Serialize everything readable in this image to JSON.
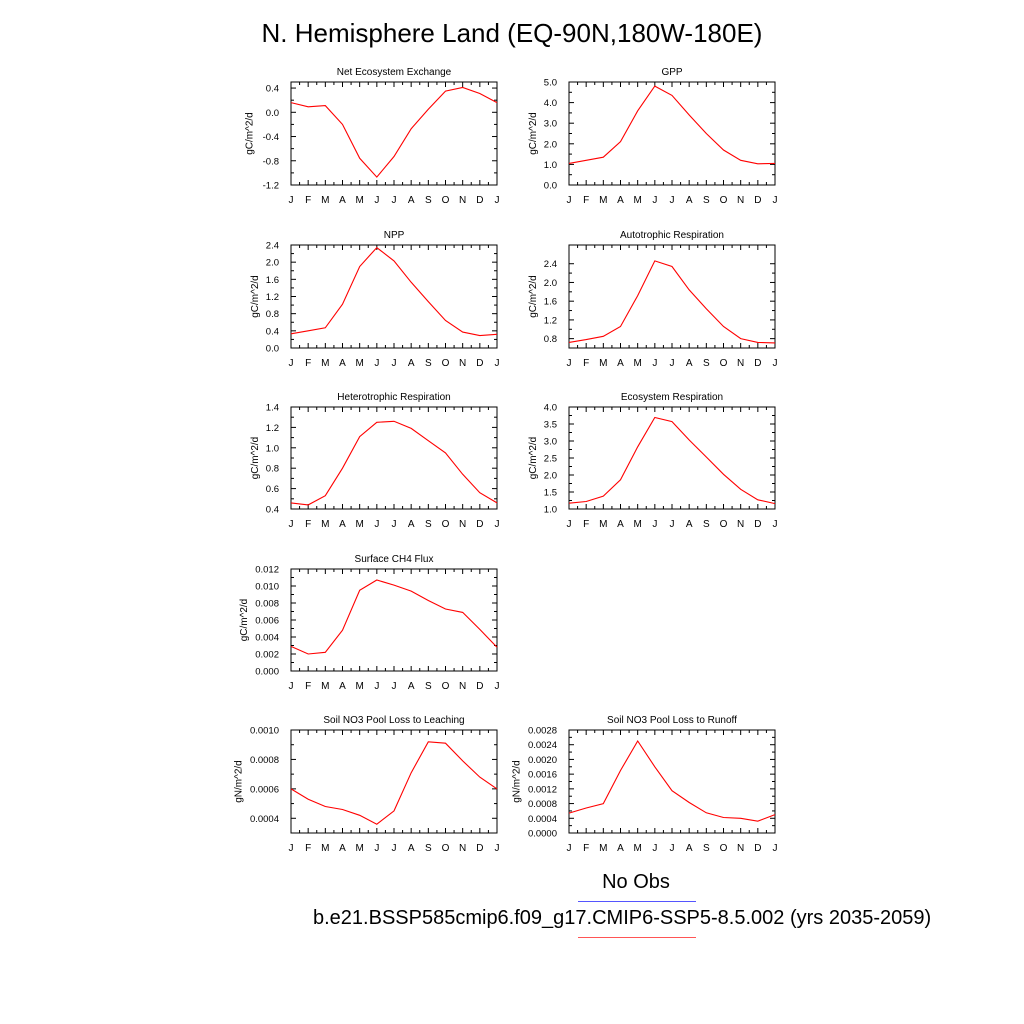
{
  "title": "N. Hemisphere Land (EQ-90N,180W-180E)",
  "months": [
    "J",
    "F",
    "M",
    "A",
    "M",
    "J",
    "J",
    "A",
    "S",
    "O",
    "N",
    "D",
    "J"
  ],
  "legend": {
    "obs_label": "No Obs",
    "obs_color": "#0000ff",
    "model_label": "b.e21.BSSP585cmip6.f09_g17.CMIP6-SSP5-8.5.002 (yrs 2035-2059)",
    "model_color": "#ff0000"
  },
  "chart_data": [
    {
      "type": "line",
      "title": "Net Ecosystem Exchange",
      "ylabel": "gC/m^2/d",
      "ylim": [
        -1.2,
        0.5
      ],
      "yticks": [
        "-1.2",
        "-0.8",
        "-0.4",
        "0.0",
        "0.4"
      ],
      "ytick_values": [
        -1.2,
        -0.8,
        -0.4,
        0.0,
        0.4
      ],
      "x": [
        "J",
        "F",
        "M",
        "A",
        "M",
        "J",
        "J",
        "A",
        "S",
        "O",
        "N",
        "D",
        "J"
      ],
      "series": [
        {
          "color": "#ff0000",
          "values": [
            0.16,
            0.09,
            0.11,
            -0.2,
            -0.76,
            -1.07,
            -0.73,
            -0.27,
            0.05,
            0.35,
            0.41,
            0.31,
            0.16
          ]
        }
      ]
    },
    {
      "type": "line",
      "title": "GPP",
      "ylabel": "gC/m^2/d",
      "ylim": [
        0,
        5
      ],
      "yticks": [
        "0.0",
        "1.0",
        "2.0",
        "3.0",
        "4.0",
        "5.0"
      ],
      "ytick_values": [
        0,
        1,
        2,
        3,
        4,
        5
      ],
      "x": [
        "J",
        "F",
        "M",
        "A",
        "M",
        "J",
        "J",
        "A",
        "S",
        "O",
        "N",
        "D",
        "J"
      ],
      "series": [
        {
          "color": "#ff0000",
          "values": [
            1.05,
            1.2,
            1.35,
            2.1,
            3.6,
            4.8,
            4.35,
            3.4,
            2.5,
            1.7,
            1.2,
            1.03,
            1.05
          ]
        }
      ]
    },
    {
      "type": "line",
      "title": "NPP",
      "ylabel": "gC/m^2/d",
      "ylim": [
        0,
        2.4
      ],
      "yticks": [
        "0.0",
        "0.4",
        "0.8",
        "1.2",
        "1.6",
        "2.0",
        "2.4"
      ],
      "ytick_values": [
        0,
        0.4,
        0.8,
        1.2,
        1.6,
        2.0,
        2.4
      ],
      "x": [
        "J",
        "F",
        "M",
        "A",
        "M",
        "J",
        "J",
        "A",
        "S",
        "O",
        "N",
        "D",
        "J"
      ],
      "series": [
        {
          "color": "#ff0000",
          "values": [
            0.33,
            0.4,
            0.47,
            1.02,
            1.9,
            2.34,
            2.03,
            1.53,
            1.08,
            0.64,
            0.37,
            0.29,
            0.32
          ]
        }
      ]
    },
    {
      "type": "line",
      "title": "Autotrophic Respiration",
      "ylabel": "gC/m^2/d",
      "ylim": [
        0.6,
        2.8
      ],
      "yticks": [
        "0.8",
        "1.2",
        "1.6",
        "2.0",
        "2.4"
      ],
      "ytick_values": [
        0.8,
        1.2,
        1.6,
        2.0,
        2.4
      ],
      "x": [
        "J",
        "F",
        "M",
        "A",
        "M",
        "J",
        "J",
        "A",
        "S",
        "O",
        "N",
        "D",
        "J"
      ],
      "series": [
        {
          "color": "#ff0000",
          "values": [
            0.72,
            0.78,
            0.85,
            1.06,
            1.72,
            2.46,
            2.34,
            1.84,
            1.44,
            1.06,
            0.8,
            0.72,
            0.71
          ]
        }
      ]
    },
    {
      "type": "line",
      "title": "Heterotrophic Respiration",
      "ylabel": "gC/m^2/d",
      "ylim": [
        0.4,
        1.4
      ],
      "yticks": [
        "0.4",
        "0.6",
        "0.8",
        "1.0",
        "1.2",
        "1.4"
      ],
      "ytick_values": [
        0.4,
        0.6,
        0.8,
        1.0,
        1.2,
        1.4
      ],
      "x": [
        "J",
        "F",
        "M",
        "A",
        "M",
        "J",
        "J",
        "A",
        "S",
        "O",
        "N",
        "D",
        "J"
      ],
      "series": [
        {
          "color": "#ff0000",
          "values": [
            0.46,
            0.44,
            0.53,
            0.8,
            1.11,
            1.25,
            1.26,
            1.19,
            1.07,
            0.95,
            0.74,
            0.56,
            0.46
          ]
        }
      ]
    },
    {
      "type": "line",
      "title": "Ecosystem Respiration",
      "ylabel": "gC/m^2/d",
      "ylim": [
        1.0,
        4.0
      ],
      "yticks": [
        "1.0",
        "1.5",
        "2.0",
        "2.5",
        "3.0",
        "3.5",
        "4.0"
      ],
      "ytick_values": [
        1.0,
        1.5,
        2.0,
        2.5,
        3.0,
        3.5,
        4.0
      ],
      "x": [
        "J",
        "F",
        "M",
        "A",
        "M",
        "J",
        "J",
        "A",
        "S",
        "O",
        "N",
        "D",
        "J"
      ],
      "series": [
        {
          "color": "#ff0000",
          "values": [
            1.17,
            1.22,
            1.38,
            1.86,
            2.83,
            3.69,
            3.57,
            3.03,
            2.53,
            2.02,
            1.58,
            1.27,
            1.16
          ]
        }
      ]
    },
    {
      "type": "line",
      "title": "Surface CH4 Flux",
      "ylabel": "gC/m^2/d",
      "ylim": [
        0,
        0.012
      ],
      "yticks": [
        "0.000",
        "0.002",
        "0.004",
        "0.006",
        "0.008",
        "0.010",
        "0.012"
      ],
      "ytick_values": [
        0,
        0.002,
        0.004,
        0.006,
        0.008,
        0.01,
        0.012
      ],
      "x": [
        "J",
        "F",
        "M",
        "A",
        "M",
        "J",
        "J",
        "A",
        "S",
        "O",
        "N",
        "D",
        "J"
      ],
      "series": [
        {
          "color": "#ff0000",
          "values": [
            0.0029,
            0.002,
            0.0022,
            0.0048,
            0.0095,
            0.0107,
            0.0101,
            0.0094,
            0.0083,
            0.0073,
            0.0069,
            0.0049,
            0.0028
          ]
        }
      ]
    },
    {
      "type": "line",
      "title": "Soil NO3 Pool Loss to Leaching",
      "ylabel": "gN/m^2/d",
      "ylim": [
        0.0003,
        0.001
      ],
      "yticks": [
        "0.0004",
        "0.0006",
        "0.0008",
        "0.0010"
      ],
      "ytick_values": [
        0.0004,
        0.0006,
        0.0008,
        0.001
      ],
      "x": [
        "J",
        "F",
        "M",
        "A",
        "M",
        "J",
        "J",
        "A",
        "S",
        "O",
        "N",
        "D",
        "J"
      ],
      "series": [
        {
          "color": "#ff0000",
          "values": [
            0.0006,
            0.00053,
            0.00048,
            0.00046,
            0.00042,
            0.00036,
            0.00045,
            0.00071,
            0.00092,
            0.00091,
            0.00079,
            0.00068,
            0.0006
          ]
        }
      ]
    },
    {
      "type": "line",
      "title": "Soil NO3 Pool Loss to Runoff",
      "ylabel": "gN/m^2/d",
      "ylim": [
        0,
        0.0028
      ],
      "yticks": [
        "0.0000",
        "0.0004",
        "0.0008",
        "0.0012",
        "0.0016",
        "0.0020",
        "0.0024",
        "0.0028"
      ],
      "ytick_values": [
        0,
        0.0004,
        0.0008,
        0.0012,
        0.0016,
        0.002,
        0.0024,
        0.0028
      ],
      "x": [
        "J",
        "F",
        "M",
        "A",
        "M",
        "J",
        "J",
        "A",
        "S",
        "O",
        "N",
        "D",
        "J"
      ],
      "series": [
        {
          "color": "#ff0000",
          "values": [
            0.00054,
            0.00068,
            0.0008,
            0.0017,
            0.0025,
            0.0018,
            0.00115,
            0.00083,
            0.00055,
            0.00042,
            0.0004,
            0.00032,
            0.0005
          ]
        }
      ]
    }
  ]
}
